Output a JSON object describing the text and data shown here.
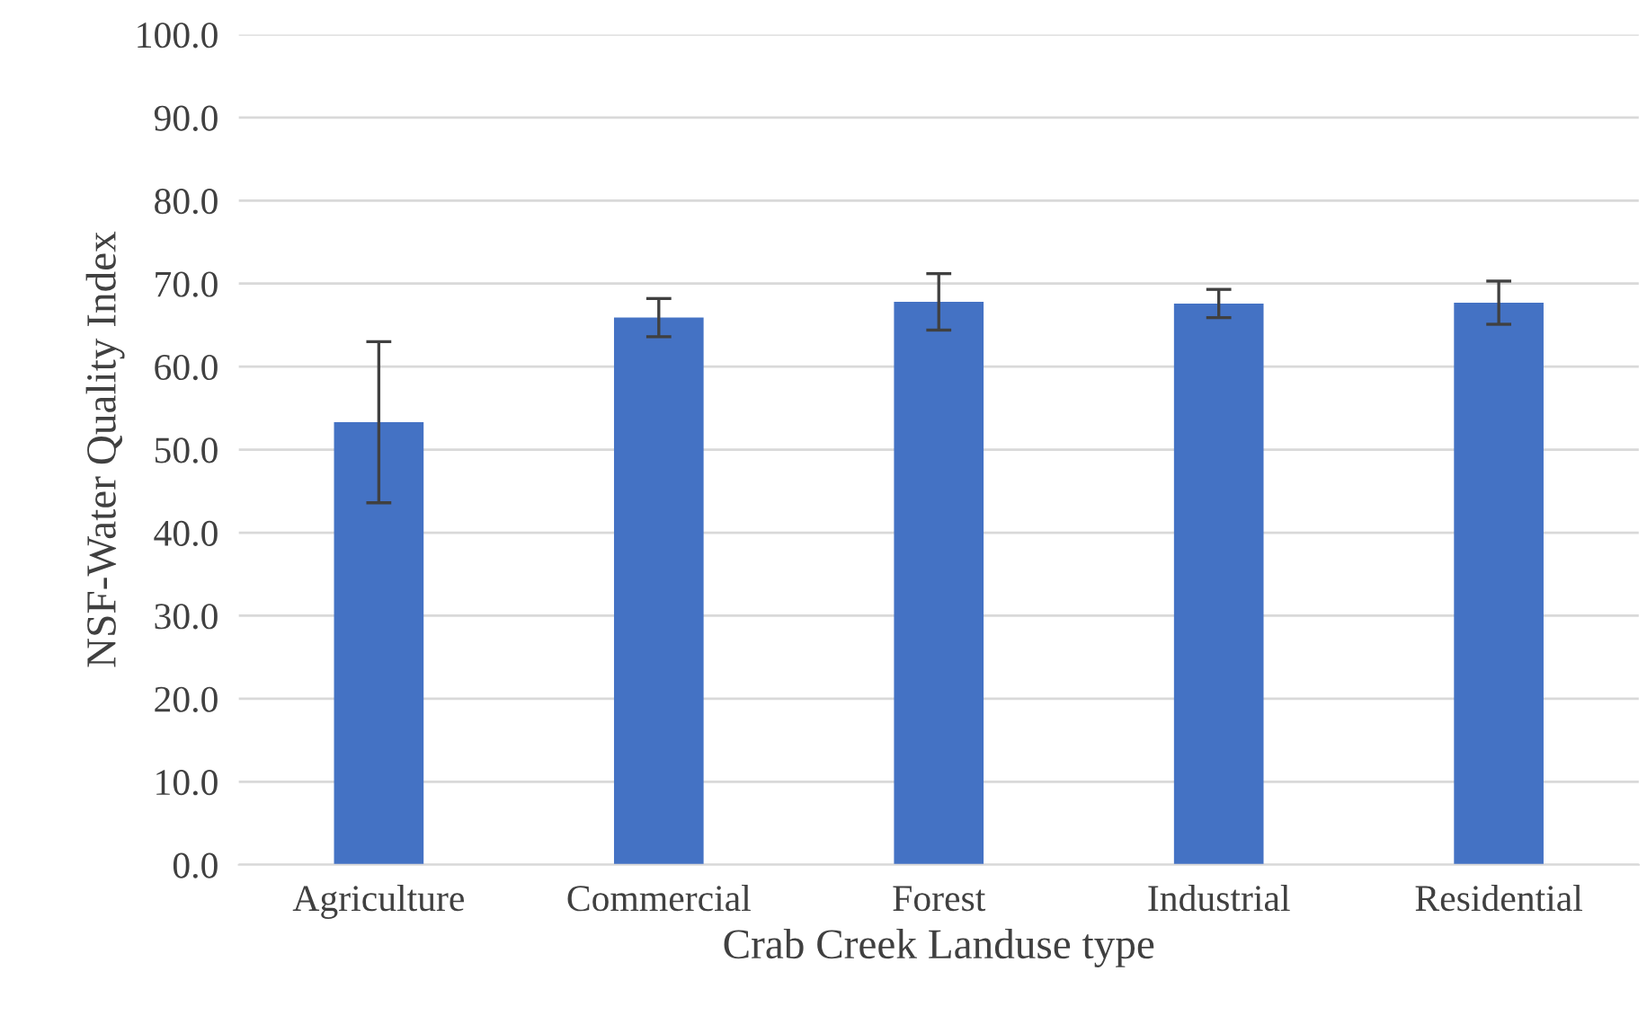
{
  "chart_data": {
    "type": "bar",
    "xlabel": "Crab Creek Landuse type",
    "ylabel": "NSF-Water Quality Index",
    "categories": [
      "Agriculture",
      "Commercial",
      "Forest",
      "Industrial",
      "Residential"
    ],
    "values": [
      53.3,
      65.9,
      67.8,
      67.6,
      67.7
    ],
    "errors": [
      9.7,
      2.3,
      3.4,
      1.7,
      2.6
    ],
    "color": "#4472c4",
    "ylim": [
      0,
      100
    ],
    "yticks": [
      {
        "value": 0,
        "label": "0.0"
      },
      {
        "value": 10,
        "label": "10.0"
      },
      {
        "value": 20,
        "label": "20.0"
      },
      {
        "value": 30,
        "label": "30.0"
      },
      {
        "value": 40,
        "label": "40.0"
      },
      {
        "value": 50,
        "label": "50.0"
      },
      {
        "value": 60,
        "label": "60.0"
      },
      {
        "value": 70,
        "label": "70.0"
      },
      {
        "value": 80,
        "label": "80.0"
      },
      {
        "value": 90,
        "label": "90.0"
      },
      {
        "value": 100,
        "label": "100.0"
      }
    ],
    "grid": "y"
  }
}
